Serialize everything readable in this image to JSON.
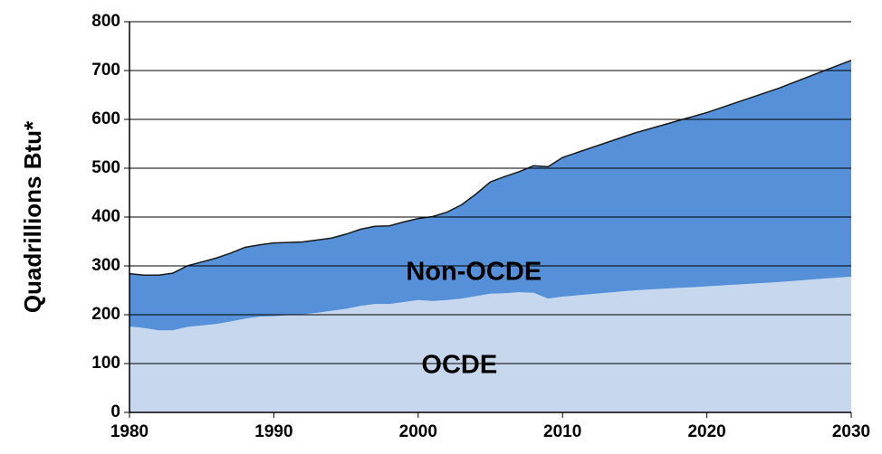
{
  "chart_data": {
    "type": "stacked_area",
    "y_label": "Quadrillions Btu*",
    "x": [
      1980,
      1981,
      1982,
      1983,
      1984,
      1985,
      1986,
      1987,
      1988,
      1989,
      1990,
      1991,
      1992,
      1993,
      1994,
      1995,
      1996,
      1997,
      1998,
      1999,
      2000,
      2001,
      2002,
      2003,
      2004,
      2005,
      2006,
      2007,
      2008,
      2009,
      2010,
      2015,
      2020,
      2025,
      2030
    ],
    "series": [
      {
        "name": "OCDE",
        "color": "#c6d7ee",
        "values": [
          176,
          173,
          168,
          168,
          175,
          178,
          181,
          186,
          192,
          196,
          197,
          199,
          201,
          204,
          208,
          212,
          218,
          222,
          222,
          226,
          230,
          228,
          230,
          233,
          238,
          243,
          244,
          246,
          245,
          233,
          237,
          250,
          258,
          267,
          278
        ]
      },
      {
        "name": "Non-OCDE",
        "color": "#5590d8",
        "values": [
          108,
          108,
          113,
          117,
          125,
          130,
          135,
          140,
          146,
          147,
          150,
          149,
          148,
          149,
          149,
          153,
          157,
          159,
          160,
          164,
          167,
          173,
          180,
          192,
          209,
          229,
          239,
          247,
          260,
          270,
          285,
          322,
          356,
          397,
          443
        ]
      }
    ],
    "xlim": [
      1980,
      2030
    ],
    "xticks": [
      1980,
      1990,
      2000,
      2010,
      2020,
      2030
    ],
    "ylim": [
      0,
      800
    ],
    "yticks": [
      0,
      100,
      200,
      300,
      400,
      500,
      600,
      700,
      800
    ],
    "grid": true
  }
}
